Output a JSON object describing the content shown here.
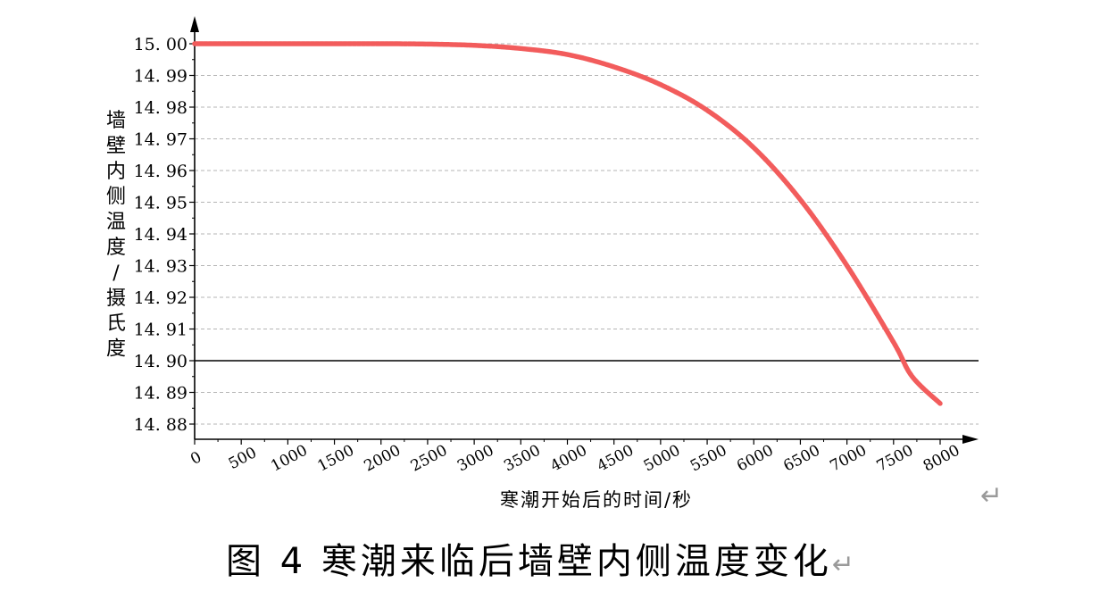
{
  "chart_data": {
    "type": "line",
    "xlabel": "寒潮开始后的时间/秒",
    "ylabel": "墙壁内侧温度/摄氏度",
    "xlim": [
      0,
      8000
    ],
    "ylim": [
      14.875,
      15.012
    ],
    "x_ticks": [
      "0",
      "500",
      "1000",
      "1500",
      "2000",
      "2500",
      "3000",
      "3500",
      "4000",
      "4500",
      "5000",
      "5500",
      "6000",
      "6500",
      "7000",
      "7500",
      "8000"
    ],
    "y_ticks": [
      "15. 00",
      "14. 99",
      "14. 98",
      "14. 97",
      "14. 96",
      "14. 95",
      "14. 94",
      "14. 93",
      "14. 92",
      "14. 91",
      "14. 90",
      "14. 89",
      "14. 88"
    ],
    "reference_line": 14.9,
    "grid": "horizontal dashed",
    "series": [
      {
        "color": "#f25c5c",
        "x": [
          0,
          500,
          1000,
          1500,
          2000,
          2500,
          3000,
          3500,
          4000,
          4500,
          5000,
          5500,
          6000,
          6500,
          7000,
          7500,
          7700,
          8000
        ],
        "y": [
          15.0,
          15.0,
          15.0,
          15.0,
          15.0,
          14.9999,
          14.9995,
          14.9985,
          14.9966,
          14.9927,
          14.9871,
          14.979,
          14.9672,
          14.9508,
          14.93,
          14.9058,
          14.895,
          14.8865
        ]
      }
    ]
  },
  "caption": {
    "text": "图 4  寒潮来临后墙壁内侧温度变化",
    "mark": "↵"
  },
  "paragraph_mark": "↵"
}
